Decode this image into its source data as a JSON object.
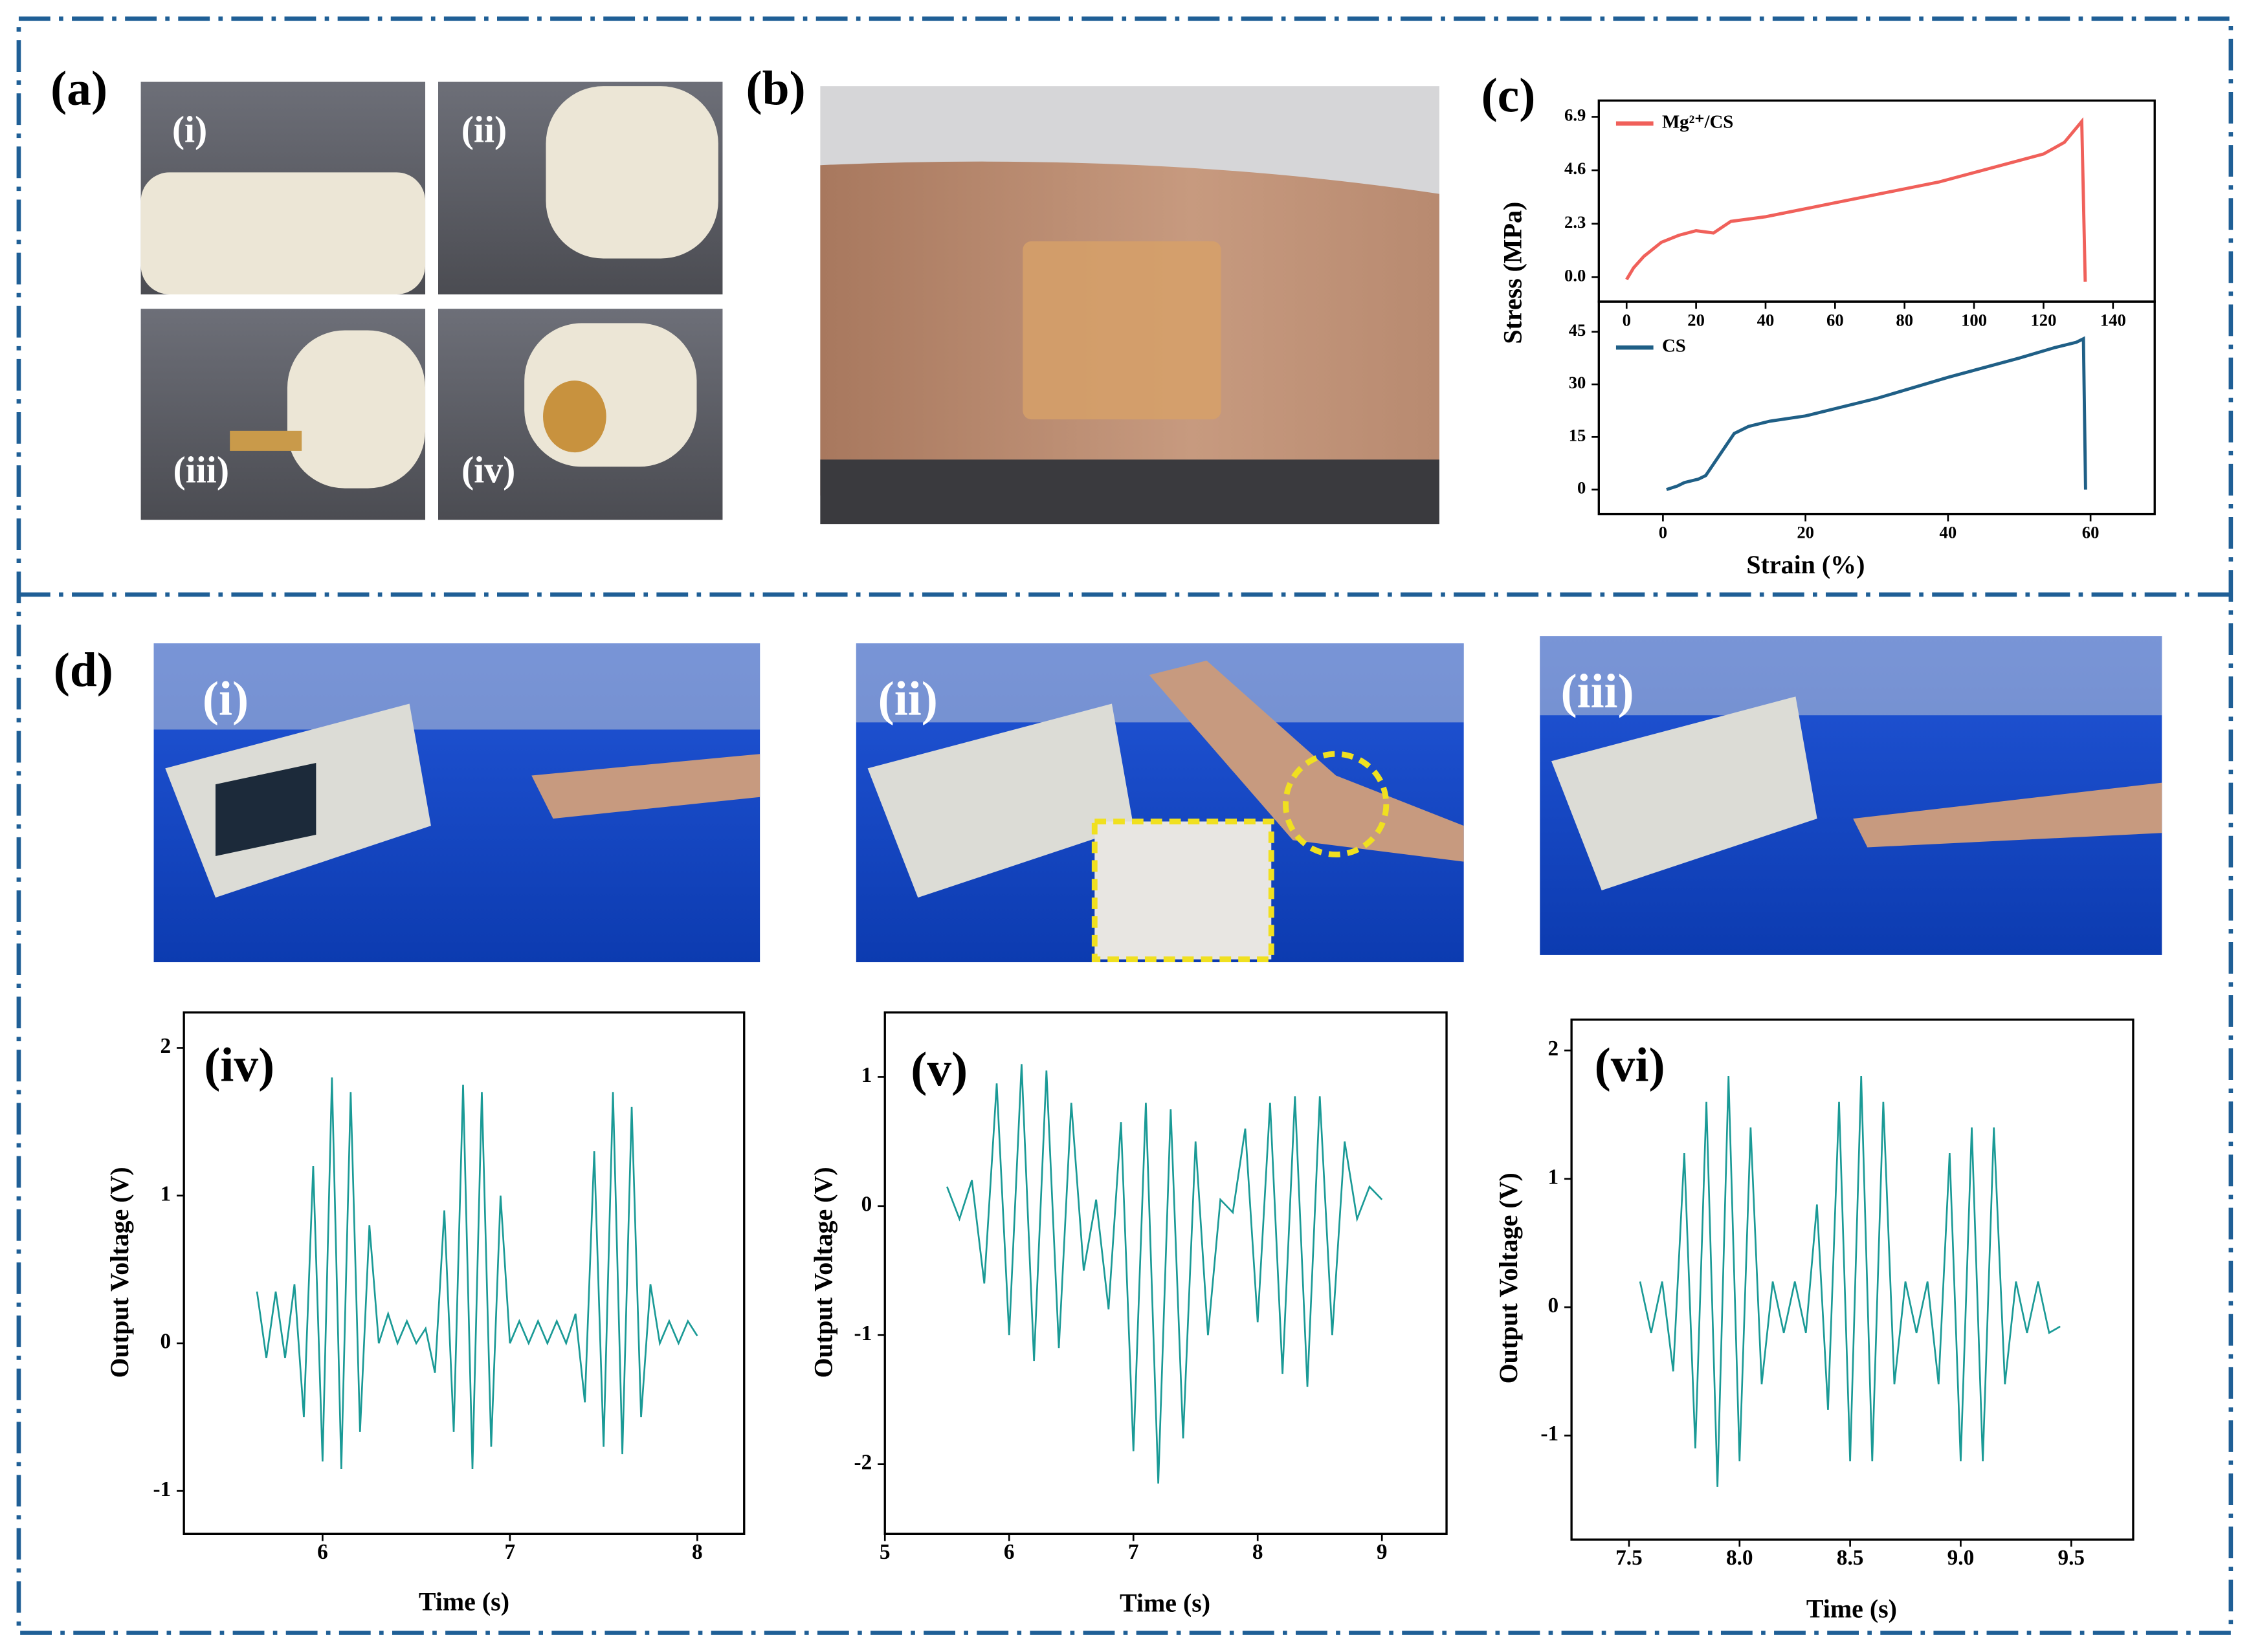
{
  "panels": {
    "a": {
      "label": "(a)",
      "photos": [
        "(i)",
        "(ii)",
        "(iii)",
        "(iv)"
      ]
    },
    "b": {
      "label": "(b)"
    },
    "c": {
      "label": "(c)"
    },
    "d": {
      "label": "(d)",
      "photos": [
        "(i)",
        "(ii)",
        "(iii)"
      ]
    }
  },
  "chart_data": [
    {
      "type": "line",
      "ylabel": "Stress (MPa)",
      "legend": "upper left",
      "x": [
        0,
        2,
        5,
        10,
        15,
        20,
        25,
        30,
        40,
        50,
        60,
        70,
        80,
        90,
        100,
        110,
        120,
        126,
        131,
        132
      ],
      "series": [
        {
          "name": "Mg²⁺/CS",
          "color": "#f0605a",
          "values": [
            -0.1,
            0.4,
            0.9,
            1.5,
            1.8,
            2.0,
            1.9,
            2.4,
            2.6,
            2.9,
            3.2,
            3.5,
            3.8,
            4.1,
            4.5,
            4.9,
            5.3,
            5.8,
            6.7,
            -0.2
          ]
        }
      ],
      "xlim": [
        -8,
        152
      ],
      "ylim": [
        -1.05,
        7.6
      ],
      "xticks": [
        0,
        20,
        40,
        60,
        80,
        100,
        120,
        140
      ],
      "yticks": [
        {
          "value": 0,
          "label": "0.0"
        },
        2.3,
        4.6,
        6.9
      ]
    },
    {
      "type": "line",
      "xlabel": "Strain (%)",
      "legend": "upper left",
      "x": [
        0.5,
        2,
        3,
        5,
        6,
        8,
        10,
        12,
        15,
        20,
        30,
        40,
        50,
        55,
        58,
        59,
        59.3
      ],
      "series": [
        {
          "name": "CS",
          "color": "#1f5f86",
          "values": [
            0,
            1,
            2,
            3,
            4,
            10,
            16,
            18,
            19.5,
            21,
            26,
            32,
            37.5,
            40.5,
            42,
            43,
            0
          ]
        }
      ],
      "xlim": [
        -9,
        69
      ],
      "ylim": [
        -7,
        53.6
      ],
      "xticks": [
        0,
        20,
        40,
        60
      ],
      "yticks": [
        0,
        15,
        30,
        45
      ]
    },
    {
      "type": "line",
      "annotation": "(iv)",
      "xlabel": "Time (s)",
      "ylabel": "Output Voltage (V)",
      "color": "#1a9a96",
      "x": [
        5.65,
        5.7,
        5.75,
        5.8,
        5.85,
        5.9,
        5.95,
        6.0,
        6.05,
        6.1,
        6.15,
        6.2,
        6.25,
        6.3,
        6.35,
        6.4,
        6.45,
        6.5,
        6.55,
        6.6,
        6.65,
        6.7,
        6.75,
        6.8,
        6.85,
        6.9,
        6.95,
        7.0,
        7.05,
        7.1,
        7.15,
        7.2,
        7.25,
        7.3,
        7.35,
        7.4,
        7.45,
        7.5,
        7.55,
        7.6,
        7.65,
        7.7,
        7.75,
        7.8,
        7.85,
        7.9,
        7.95,
        8.0
      ],
      "values": [
        0.35,
        -0.1,
        0.35,
        -0.1,
        0.4,
        -0.5,
        1.2,
        -0.8,
        1.8,
        -0.85,
        1.7,
        -0.6,
        0.8,
        0.0,
        0.2,
        0.0,
        0.15,
        0.0,
        0.1,
        -0.2,
        0.9,
        -0.6,
        1.75,
        -0.85,
        1.7,
        -0.7,
        1.0,
        0.0,
        0.15,
        0.0,
        0.15,
        0.0,
        0.15,
        0.0,
        0.2,
        -0.4,
        1.3,
        -0.7,
        1.7,
        -0.75,
        1.6,
        -0.5,
        0.4,
        0.0,
        0.15,
        0.0,
        0.15,
        0.05
      ],
      "xlim": [
        5.26,
        8.25
      ],
      "ylim": [
        -1.29,
        2.24
      ],
      "xticks": [
        6,
        7,
        8
      ],
      "yticks": [
        -1,
        0,
        1,
        2
      ]
    },
    {
      "type": "line",
      "annotation": "(v)",
      "xlabel": "Time (s)",
      "ylabel": "Output Voltage (V)",
      "color": "#1a9a96",
      "x": [
        5.5,
        5.6,
        5.7,
        5.8,
        5.9,
        6.0,
        6.1,
        6.2,
        6.3,
        6.4,
        6.5,
        6.6,
        6.7,
        6.8,
        6.9,
        7.0,
        7.1,
        7.2,
        7.3,
        7.4,
        7.5,
        7.6,
        7.7,
        7.8,
        7.9,
        8.0,
        8.1,
        8.2,
        8.3,
        8.4,
        8.5,
        8.6,
        8.7,
        8.8,
        8.9,
        9.0
      ],
      "values": [
        0.15,
        -0.1,
        0.2,
        -0.6,
        0.95,
        -1.0,
        1.1,
        -1.2,
        1.05,
        -1.1,
        0.8,
        -0.5,
        0.05,
        -0.8,
        0.65,
        -1.9,
        0.8,
        -2.15,
        0.75,
        -1.8,
        0.5,
        -1.0,
        0.05,
        -0.05,
        0.6,
        -0.9,
        0.8,
        -1.3,
        0.85,
        -1.4,
        0.85,
        -1.0,
        0.5,
        -0.1,
        0.15,
        0.05
      ],
      "xlim": [
        5,
        9.52
      ],
      "ylim": [
        -2.54,
        1.5
      ],
      "xticks": [
        5,
        6,
        7,
        8,
        9
      ],
      "yticks": [
        -2,
        -1,
        0,
        1
      ]
    },
    {
      "type": "line",
      "annotation": "(vi)",
      "xlabel": "Time (s)",
      "ylabel": "Output Voltage (V)",
      "color": "#1a9a96",
      "x": [
        7.55,
        7.6,
        7.65,
        7.7,
        7.75,
        7.8,
        7.85,
        7.9,
        7.95,
        8.0,
        8.05,
        8.1,
        8.15,
        8.2,
        8.25,
        8.3,
        8.35,
        8.4,
        8.45,
        8.5,
        8.55,
        8.6,
        8.65,
        8.7,
        8.75,
        8.8,
        8.85,
        8.9,
        8.95,
        9.0,
        9.05,
        9.1,
        9.15,
        9.2,
        9.25,
        9.3,
        9.35,
        9.4,
        9.45
      ],
      "values": [
        0.2,
        -0.2,
        0.2,
        -0.5,
        1.2,
        -1.1,
        1.6,
        -1.4,
        1.8,
        -1.2,
        1.4,
        -0.6,
        0.2,
        -0.2,
        0.2,
        -0.2,
        0.8,
        -0.8,
        1.6,
        -1.2,
        1.8,
        -1.2,
        1.6,
        -0.6,
        0.2,
        -0.2,
        0.2,
        -0.6,
        1.2,
        -1.2,
        1.4,
        -1.2,
        1.4,
        -0.6,
        0.2,
        -0.2,
        0.2,
        -0.2,
        -0.15
      ],
      "xlim": [
        7.24,
        9.78
      ],
      "ylim": [
        -1.81,
        2.24
      ],
      "xticks": [
        7.5,
        {
          "value": 8,
          "label": "8.0"
        },
        8.5,
        {
          "value": 9,
          "label": "9.0"
        },
        9.5
      ],
      "yticks": [
        -1,
        0,
        1,
        2
      ]
    }
  ]
}
